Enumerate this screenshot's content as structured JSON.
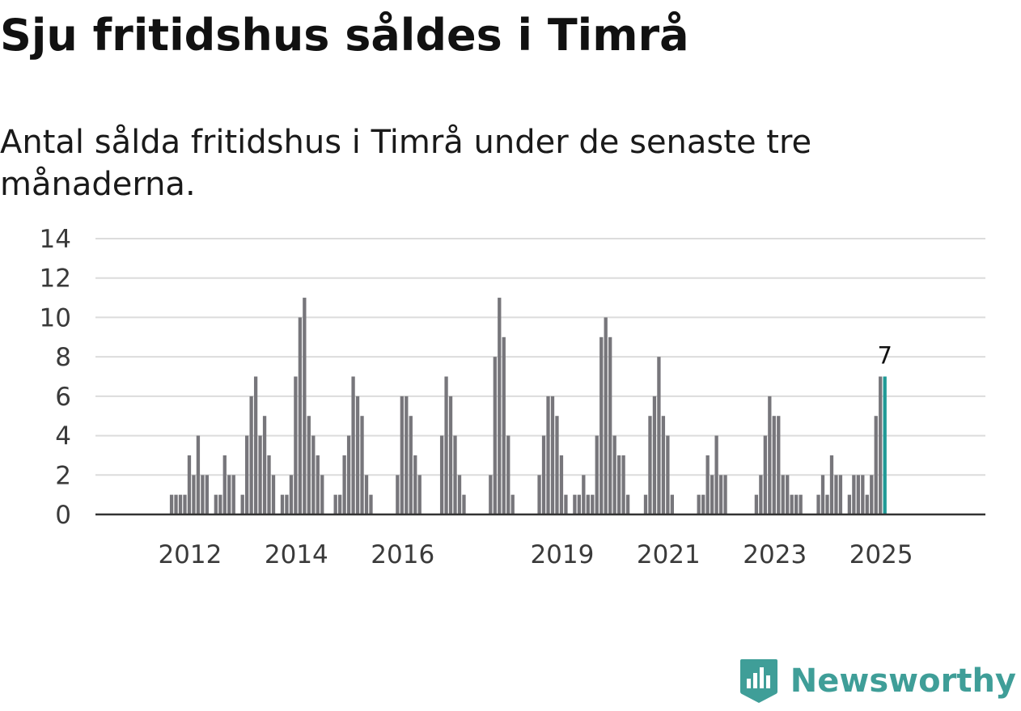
{
  "title": "Sju fritidshus såldes i Timrå",
  "subtitle": "Antal sålda fritidshus i Timrå under de senaste tre månaderna.",
  "logo": {
    "text": "Newsworthy",
    "icon": "newsworthy-chart-bubble-icon"
  },
  "colors": {
    "bar": "#77767b",
    "highlight": "#1f9a96",
    "grid": "#dcdcdc",
    "axis": "#333333",
    "logo": "#3f9e98"
  },
  "chart_data": {
    "type": "bar",
    "title": "Sju fritidshus såldes i Timrå",
    "subtitle": "Antal sålda fritidshus i Timrå under de senaste tre månaderna.",
    "xlabel": "",
    "ylabel": "",
    "ylim": [
      0,
      14
    ],
    "yticks": [
      0,
      2,
      4,
      6,
      8,
      10,
      12,
      14
    ],
    "xticks": [
      "2012",
      "2014",
      "2016",
      "2019",
      "2021",
      "2023",
      "2025"
    ],
    "grid": true,
    "legend": "none",
    "start": "2011-01",
    "frequency": "monthly",
    "values": [
      0,
      0,
      0,
      0,
      0,
      0,
      0,
      0,
      0,
      0,
      0,
      0,
      1,
      1,
      1,
      1,
      3,
      2,
      4,
      2,
      2,
      0,
      1,
      1,
      3,
      2,
      2,
      0,
      1,
      4,
      6,
      7,
      4,
      5,
      3,
      2,
      0,
      1,
      1,
      2,
      7,
      10,
      11,
      5,
      4,
      3,
      2,
      0,
      0,
      1,
      1,
      3,
      4,
      7,
      6,
      5,
      2,
      1,
      0,
      0,
      0,
      0,
      0,
      2,
      6,
      6,
      5,
      3,
      2,
      0,
      0,
      0,
      0,
      4,
      7,
      6,
      4,
      2,
      1,
      0,
      0,
      0,
      0,
      0,
      2,
      8,
      11,
      9,
      4,
      1,
      0,
      0,
      0,
      0,
      0,
      2,
      4,
      6,
      6,
      5,
      3,
      1,
      0,
      1,
      1,
      2,
      1,
      1,
      4,
      9,
      10,
      9,
      4,
      3,
      3,
      1,
      0,
      0,
      0,
      1,
      5,
      6,
      8,
      5,
      4,
      1,
      0,
      0,
      0,
      0,
      0,
      1,
      1,
      3,
      2,
      4,
      2,
      2,
      0,
      0,
      0,
      0,
      0,
      0,
      1,
      2,
      4,
      6,
      5,
      5,
      2,
      2,
      1,
      1,
      1,
      0,
      0,
      0,
      1,
      2,
      1,
      3,
      2,
      2,
      0,
      1,
      2,
      2,
      2,
      1,
      2,
      5,
      7,
      7
    ],
    "highlight_index": 173,
    "highlight_label": "7"
  }
}
